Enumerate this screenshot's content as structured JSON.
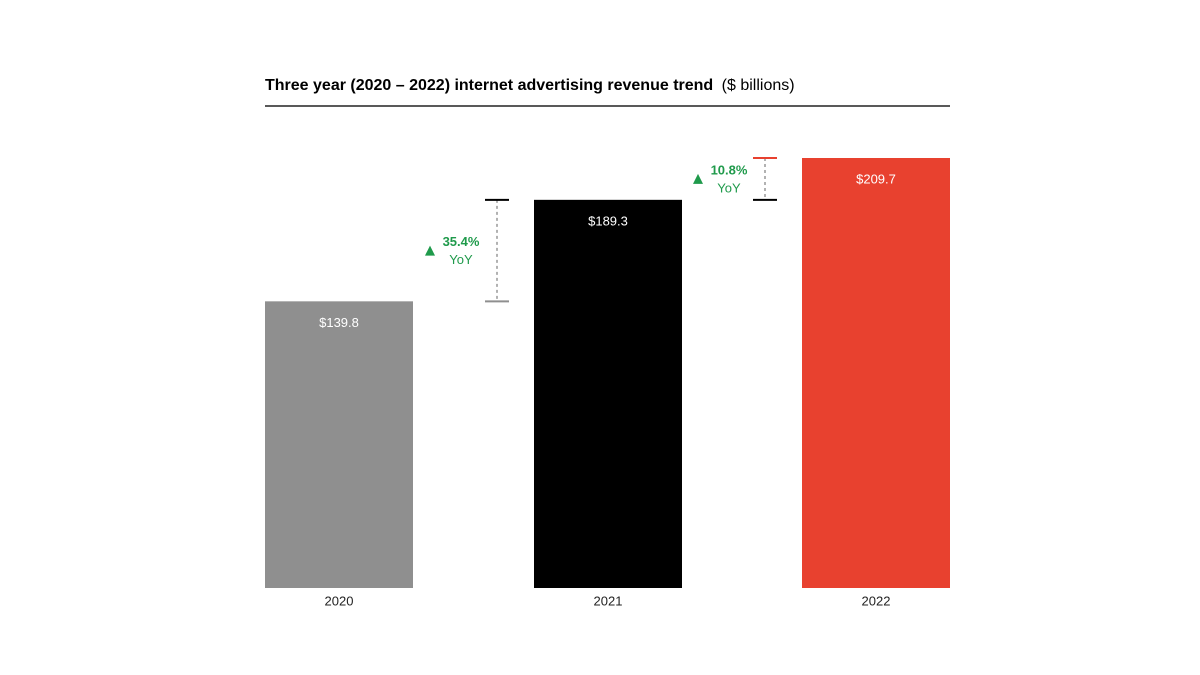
{
  "chart_data": {
    "type": "bar",
    "title": "Three year (2020 – 2022) internet advertising revenue trend",
    "unit": "($ billions)",
    "categories": [
      "2020",
      "2021",
      "2022"
    ],
    "values": [
      139.8,
      189.3,
      209.7
    ],
    "value_labels": [
      "$139.8",
      "$189.3",
      "$209.7"
    ],
    "colors": [
      "#8f8f8f",
      "#000000",
      "#e8412f"
    ],
    "annotations": [
      {
        "text": "35.4%",
        "note": "YoY"
      },
      {
        "text": "10.8%",
        "note": "YoY"
      }
    ],
    "annotation_color": "#1f9a4b"
  }
}
